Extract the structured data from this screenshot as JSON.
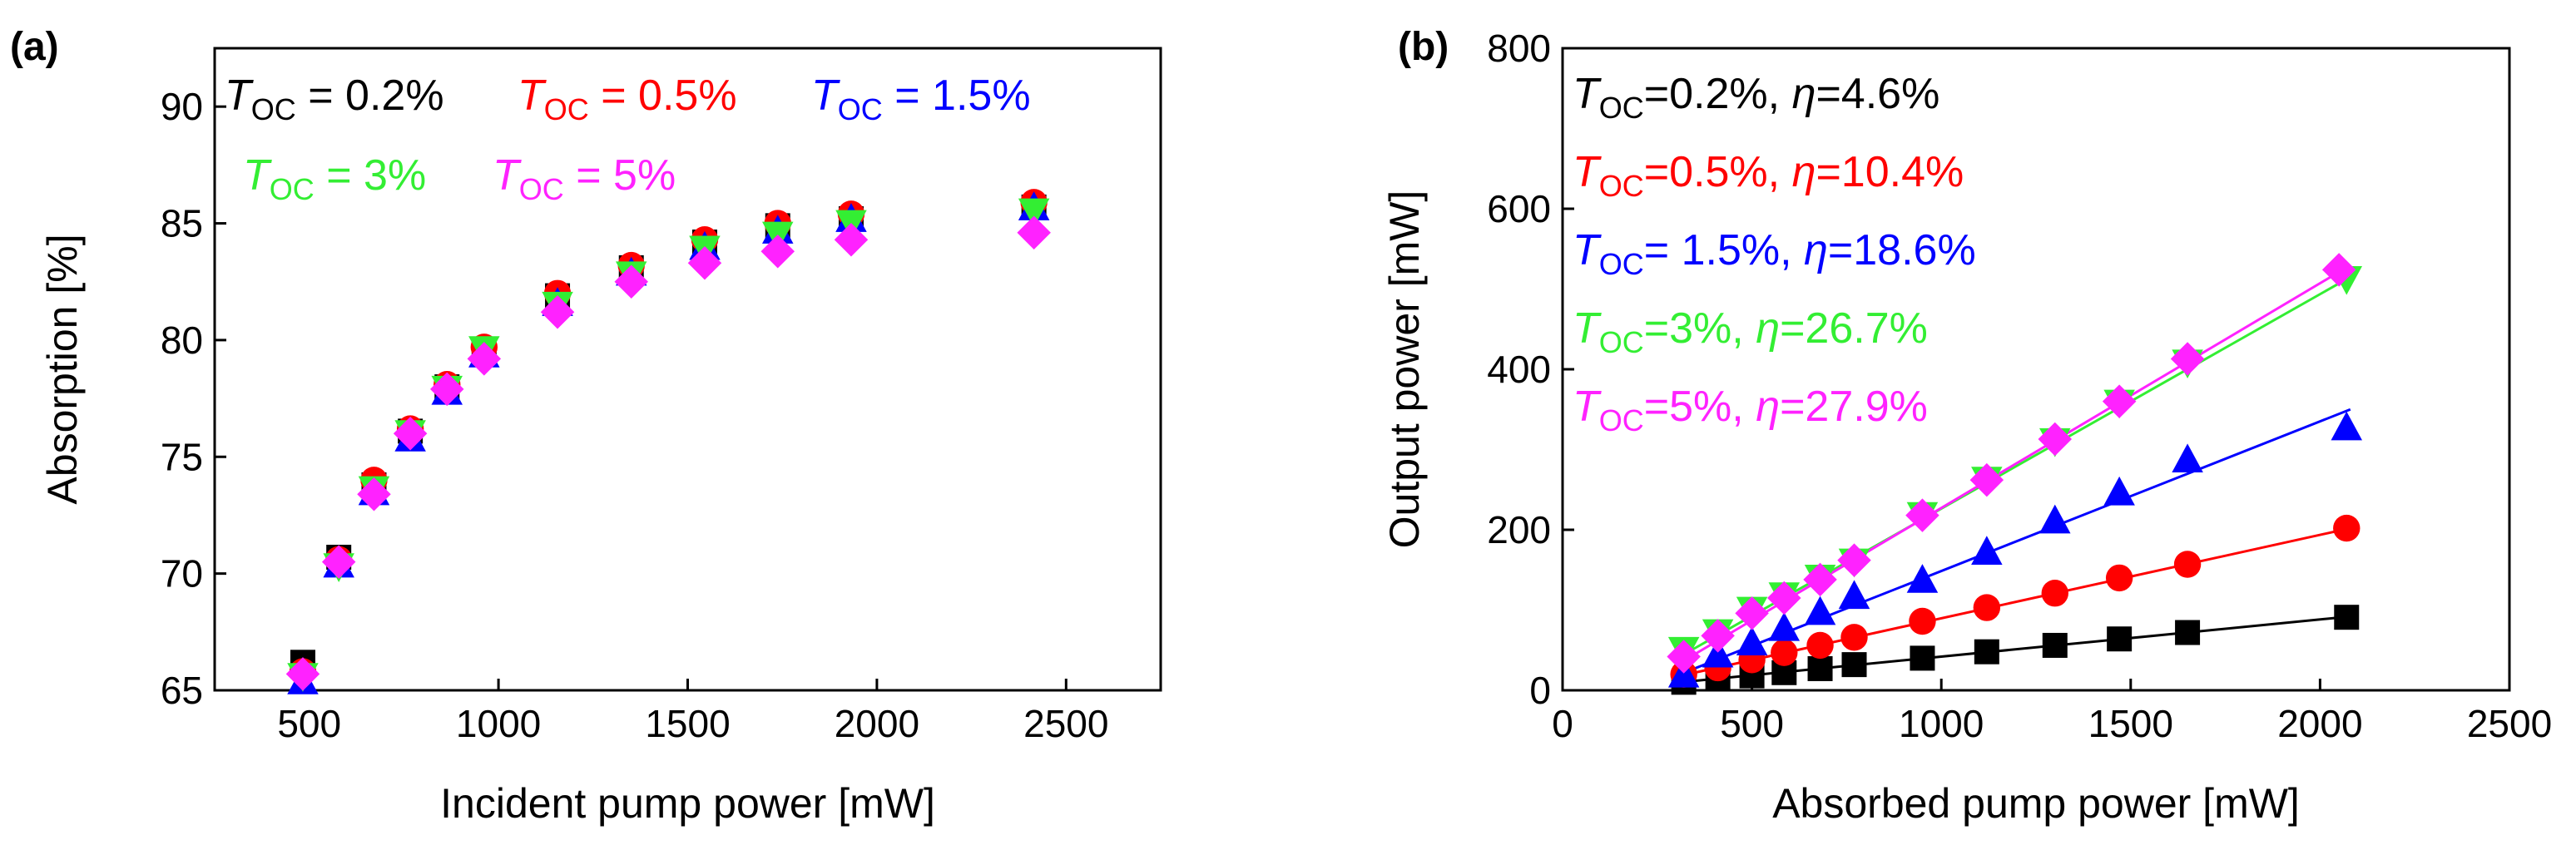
{
  "chart_data": [
    {
      "panel": "(a)",
      "type": "scatter",
      "xlabel": "Incident pump power [mW]",
      "ylabel": "Absorption [%]",
      "xlim": [
        250,
        2750
      ],
      "ylim": [
        65,
        92.5
      ],
      "xticks": [
        500,
        1000,
        1500,
        2000,
        2500
      ],
      "yticks": [
        65,
        70,
        75,
        80,
        85,
        90
      ],
      "grid": false,
      "legend_placement": "top-left",
      "series": [
        {
          "name_symbol": "T",
          "name_sub": "OC",
          "name_rest": " = 0.2%",
          "color": "#000000",
          "marker": "square",
          "x": [
            483,
            578,
            671,
            767,
            864,
            962,
            1156,
            1351,
            1545,
            1738,
            1932,
            2415
          ],
          "y": [
            66.2,
            70.7,
            73.8,
            76.1,
            78.0,
            79.6,
            81.9,
            83.1,
            84.2,
            84.9,
            85.2,
            85.7
          ]
        },
        {
          "name_symbol": "T",
          "name_sub": "OC",
          "name_rest": " = 0.5%",
          "color": "#ff0000",
          "marker": "circle",
          "x": [
            483,
            578,
            671,
            767,
            864,
            962,
            1156,
            1351,
            1545,
            1738,
            1932,
            2415
          ],
          "y": [
            65.8,
            70.6,
            74.0,
            76.2,
            78.1,
            79.7,
            82.0,
            83.2,
            84.3,
            85.0,
            85.4,
            85.9
          ]
        },
        {
          "name_symbol": "T",
          "name_sub": "OC",
          "name_rest": " = 1.5%",
          "color": "#0000ff",
          "marker": "triangle-up",
          "x": [
            483,
            578,
            671,
            767,
            864,
            962,
            1156,
            1351,
            1545,
            1738,
            1932,
            2415
          ],
          "y": [
            65.4,
            70.4,
            73.5,
            75.8,
            77.8,
            79.4,
            81.6,
            82.9,
            84.0,
            84.7,
            85.2,
            85.7
          ]
        },
        {
          "name_symbol": "T",
          "name_sub": "OC",
          "name_rest": " = 3%",
          "color": "#33ee33",
          "marker": "triangle-down",
          "x": [
            483,
            578,
            671,
            767,
            864,
            962,
            1156,
            1351,
            1545,
            1738,
            1932,
            2415
          ],
          "y": [
            65.6,
            70.3,
            73.6,
            76.0,
            77.9,
            79.6,
            81.5,
            82.8,
            83.9,
            84.5,
            85.0,
            85.5
          ]
        },
        {
          "name_symbol": "T",
          "name_sub": "OC",
          "name_rest": " = 5%",
          "color": "#ff22ff",
          "marker": "diamond",
          "x": [
            483,
            578,
            671,
            767,
            864,
            962,
            1156,
            1351,
            1545,
            1738,
            1932,
            2415
          ],
          "y": [
            65.7,
            70.5,
            73.4,
            76.0,
            77.9,
            79.2,
            81.2,
            82.5,
            83.3,
            83.8,
            84.3,
            84.6
          ]
        }
      ]
    },
    {
      "panel": "(b)",
      "type": "scatter",
      "xlabel": "Absorbed pump power [mW]",
      "ylabel": "Output power [mW]",
      "xlim": [
        0,
        2500
      ],
      "ylim": [
        0,
        800
      ],
      "xticks": [
        0,
        500,
        1000,
        1500,
        2000,
        2500
      ],
      "yticks": [
        0,
        200,
        400,
        600,
        800
      ],
      "grid": false,
      "legend_placement": "top-left",
      "series": [
        {
          "name_symbol": "T",
          "name_sub": "OC",
          "name_rest": "=0.2%, ",
          "eta_label": "=4.6%",
          "color": "#000000",
          "marker": "square",
          "x": [
            320,
            410,
            500,
            585,
            680,
            770,
            950,
            1120,
            1300,
            1470,
            1650,
            2070
          ],
          "y": [
            10,
            14,
            18,
            22,
            27,
            32,
            40,
            48,
            56,
            64,
            72,
            91
          ],
          "fit": [
            [
              310,
              10
            ],
            [
              2080,
              92
            ]
          ]
        },
        {
          "name_symbol": "T",
          "name_sub": "OC",
          "name_rest": "=0.5%, ",
          "eta_label": "=10.4%",
          "color": "#ff0000",
          "marker": "circle",
          "x": [
            320,
            410,
            500,
            585,
            680,
            770,
            950,
            1120,
            1300,
            1470,
            1650,
            2070
          ],
          "y": [
            20,
            28,
            38,
            47,
            56,
            66,
            86,
            103,
            121,
            140,
            157,
            202
          ],
          "fit": [
            [
              310,
              18
            ],
            [
              2080,
              202
            ]
          ]
        },
        {
          "name_symbol": "T",
          "name_sub": "OC",
          "name_rest": "= 1.5%, ",
          "eta_label": "=18.6%",
          "color": "#0000ff",
          "marker": "triangle-up",
          "x": [
            320,
            410,
            500,
            585,
            680,
            770,
            950,
            1120,
            1300,
            1470,
            1650,
            2070
          ],
          "y": [
            20,
            45,
            60,
            78,
            98,
            118,
            138,
            173,
            212,
            247,
            288,
            328
          ],
          "fit": [
            [
              310,
              20
            ],
            [
              2080,
              350
            ]
          ]
        },
        {
          "name_symbol": "T",
          "name_sub": "OC",
          "name_rest": "=3%, ",
          "eta_label": "=26.7%",
          "color": "#33ee33",
          "marker": "triangle-down",
          "x": [
            320,
            410,
            500,
            585,
            680,
            770,
            950,
            1120,
            1300,
            1470,
            1650,
            2070
          ],
          "y": [
            50,
            72,
            100,
            118,
            140,
            160,
            218,
            262,
            310,
            358,
            408,
            512
          ],
          "fit": [
            [
              310,
              42
            ],
            [
              2080,
              515
            ]
          ]
        },
        {
          "name_symbol": "T",
          "name_sub": "OC",
          "name_rest": "=5%, ",
          "eta_label": "=27.9%",
          "color": "#ff22ff",
          "marker": "diamond",
          "x": [
            320,
            410,
            500,
            585,
            680,
            770,
            950,
            1120,
            1300,
            1470,
            1650,
            2050
          ],
          "y": [
            42,
            68,
            96,
            115,
            138,
            162,
            218,
            262,
            313,
            360,
            413,
            524
          ],
          "fit": [
            [
              310,
              34
            ],
            [
              2060,
              524
            ]
          ]
        }
      ]
    }
  ]
}
